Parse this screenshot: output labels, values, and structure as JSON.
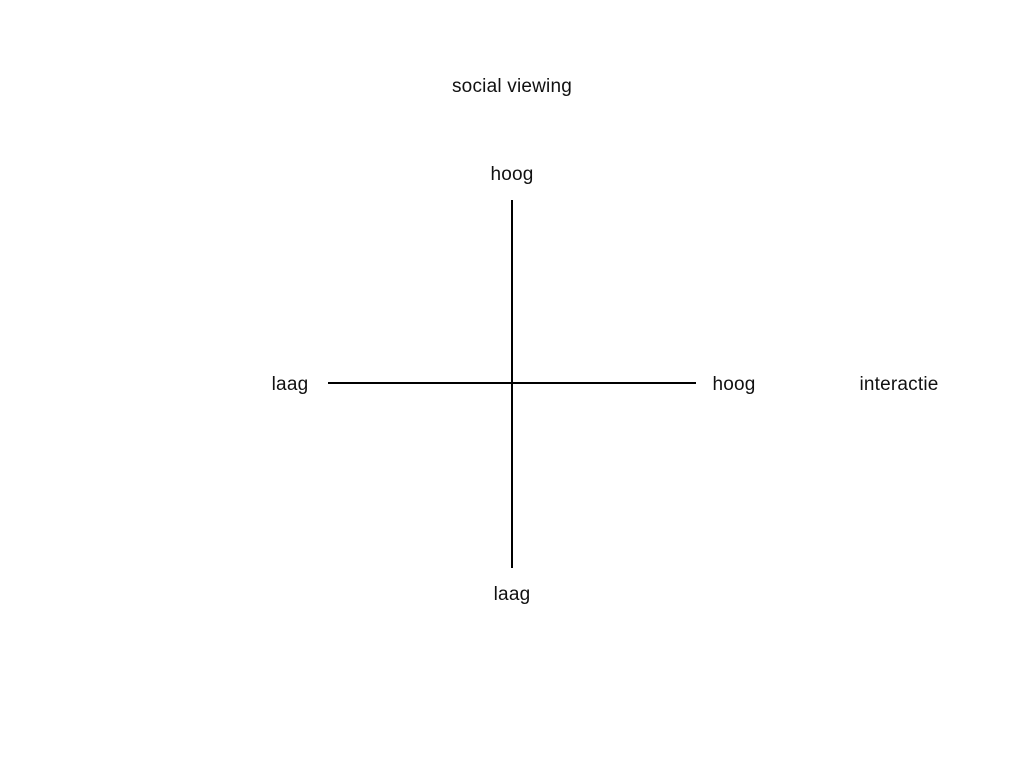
{
  "diagram": {
    "title": "social viewing",
    "vertical_axis": {
      "high_label": "hoog",
      "low_label": "laag"
    },
    "horizontal_axis": {
      "name": "interactie",
      "low_label": "laag",
      "high_label": "hoog"
    },
    "colors": {
      "background": "#ffffff",
      "line": "#000000",
      "text": "#111111"
    }
  }
}
